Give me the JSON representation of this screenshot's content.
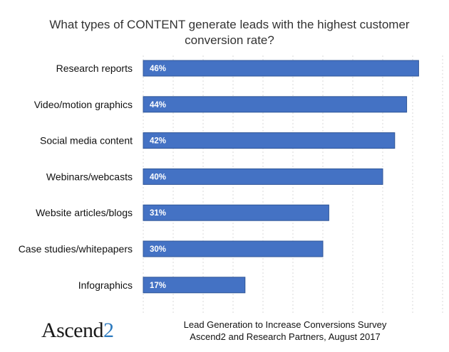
{
  "chart_data": {
    "type": "bar",
    "orientation": "horizontal",
    "title": "What types of CONTENT generate leads with the highest customer conversion rate?",
    "title_lines": [
      "What types of CONTENT generate leads with the highest customer",
      "conversion rate?"
    ],
    "categories": [
      "Research reports",
      "Video/motion graphics",
      "Social media content",
      "Webinars/webcasts",
      "Website articles/blogs",
      "Case studies/whitepapers",
      "Infographics"
    ],
    "values": [
      46,
      44,
      42,
      40,
      31,
      30,
      17
    ],
    "value_labels": [
      "46%",
      "44%",
      "42%",
      "40%",
      "31%",
      "30%",
      "17%"
    ],
    "xlim": [
      0,
      50
    ],
    "grid": true,
    "bar_color": "#4472c4"
  },
  "footer": {
    "logo_text": "Ascend",
    "logo_suffix": "2",
    "source_lines": [
      "Lead Generation to Increase Conversions Survey",
      "Ascend2 and Research Partners, August 2017"
    ]
  }
}
